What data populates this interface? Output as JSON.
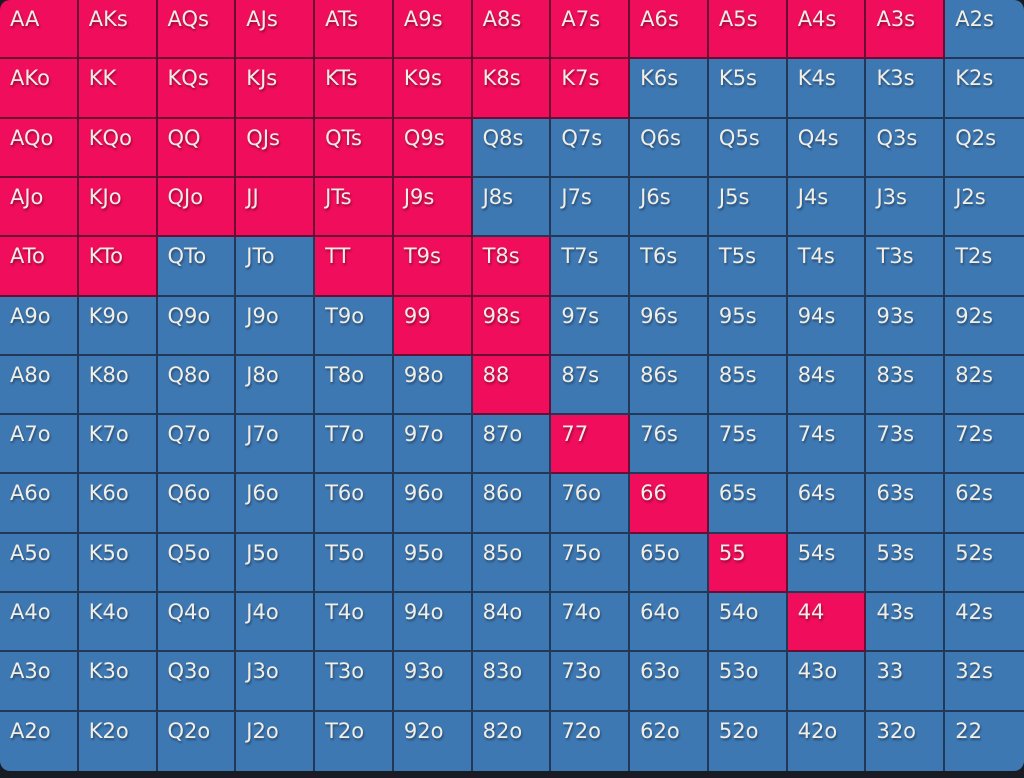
{
  "colors": {
    "selected": "#F00D5C",
    "unselected": "#3E78B3",
    "grid_line": "rgba(16,13,26,0.60)",
    "page_background": "#191C23",
    "label_text": "#F1EEE5"
  },
  "range_grid": {
    "rows": 13,
    "cols": 13,
    "hands": [
      [
        "AA",
        "AKs",
        "AQs",
        "AJs",
        "ATs",
        "A9s",
        "A8s",
        "A7s",
        "A6s",
        "A5s",
        "A4s",
        "A3s",
        "A2s"
      ],
      [
        "AKo",
        "KK",
        "KQs",
        "KJs",
        "KTs",
        "K9s",
        "K8s",
        "K7s",
        "K6s",
        "K5s",
        "K4s",
        "K3s",
        "K2s"
      ],
      [
        "AQo",
        "KQo",
        "QQ",
        "QJs",
        "QTs",
        "Q9s",
        "Q8s",
        "Q7s",
        "Q6s",
        "Q5s",
        "Q4s",
        "Q3s",
        "Q2s"
      ],
      [
        "AJo",
        "KJo",
        "QJo",
        "JJ",
        "JTs",
        "J9s",
        "J8s",
        "J7s",
        "J6s",
        "J5s",
        "J4s",
        "J3s",
        "J2s"
      ],
      [
        "ATo",
        "KTo",
        "QTo",
        "JTo",
        "TT",
        "T9s",
        "T8s",
        "T7s",
        "T6s",
        "T5s",
        "T4s",
        "T3s",
        "T2s"
      ],
      [
        "A9o",
        "K9o",
        "Q9o",
        "J9o",
        "T9o",
        "99",
        "98s",
        "97s",
        "96s",
        "95s",
        "94s",
        "93s",
        "92s"
      ],
      [
        "A8o",
        "K8o",
        "Q8o",
        "J8o",
        "T8o",
        "98o",
        "88",
        "87s",
        "86s",
        "85s",
        "84s",
        "83s",
        "82s"
      ],
      [
        "A7o",
        "K7o",
        "Q7o",
        "J7o",
        "T7o",
        "97o",
        "87o",
        "77",
        "76s",
        "75s",
        "74s",
        "73s",
        "72s"
      ],
      [
        "A6o",
        "K6o",
        "Q6o",
        "J6o",
        "T6o",
        "96o",
        "86o",
        "76o",
        "66",
        "65s",
        "64s",
        "63s",
        "62s"
      ],
      [
        "A5o",
        "K5o",
        "Q5o",
        "J5o",
        "T5o",
        "95o",
        "85o",
        "75o",
        "65o",
        "55",
        "54s",
        "53s",
        "52s"
      ],
      [
        "A4o",
        "K4o",
        "Q4o",
        "J4o",
        "T4o",
        "94o",
        "84o",
        "74o",
        "64o",
        "54o",
        "44",
        "43s",
        "42s"
      ],
      [
        "A3o",
        "K3o",
        "Q3o",
        "J3o",
        "T3o",
        "93o",
        "83o",
        "73o",
        "63o",
        "53o",
        "43o",
        "33",
        "32s"
      ],
      [
        "A2o",
        "K2o",
        "Q2o",
        "J2o",
        "T2o",
        "92o",
        "82o",
        "72o",
        "62o",
        "52o",
        "42o",
        "32o",
        "22"
      ]
    ],
    "selected_hands": [
      "AA",
      "AKs",
      "AQs",
      "AJs",
      "ATs",
      "A9s",
      "A8s",
      "A7s",
      "A6s",
      "A5s",
      "A4s",
      "A3s",
      "AKo",
      "KK",
      "KQs",
      "KJs",
      "KTs",
      "K9s",
      "K8s",
      "K7s",
      "AQo",
      "KQo",
      "QQ",
      "QJs",
      "QTs",
      "Q9s",
      "AJo",
      "KJo",
      "QJo",
      "JJ",
      "JTs",
      "J9s",
      "ATo",
      "KTo",
      "TT",
      "T9s",
      "T8s",
      "99",
      "98s",
      "88",
      "77",
      "66",
      "55",
      "44"
    ]
  }
}
